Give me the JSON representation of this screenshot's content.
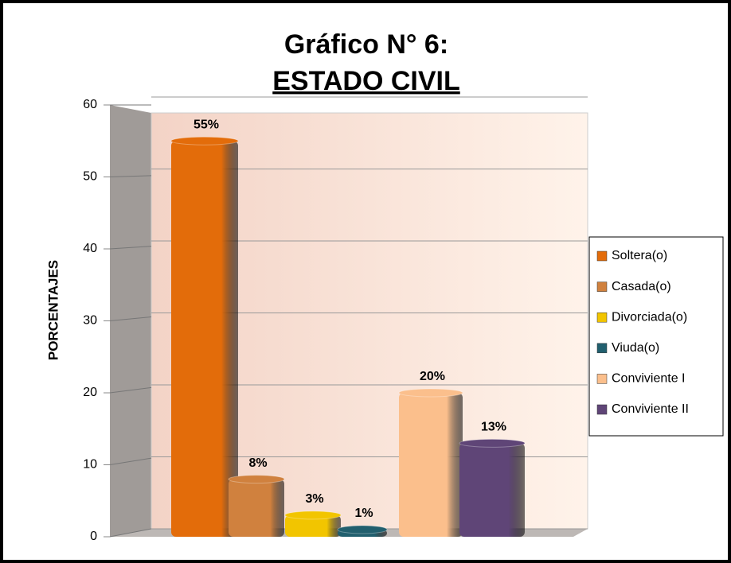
{
  "chart_data": {
    "type": "bar",
    "title": "Gráfico N° 6:",
    "subtitle": "ESTADO CIVIL",
    "y_label": "PORCENTAJES",
    "ylim": [
      0,
      60
    ],
    "yticks": [
      0,
      10,
      20,
      30,
      40,
      50,
      60
    ],
    "grid": true,
    "legend": "right",
    "series": [
      {
        "name": "Soltera(o)",
        "color": "#e36c0a",
        "values": [
          55
        ],
        "value_labels": [
          "55%"
        ]
      },
      {
        "name": "Casada(o)",
        "color": "#d0813e",
        "values": [
          8
        ],
        "value_labels": [
          "8%"
        ]
      },
      {
        "name": "Divorciada(o)",
        "color": "#f2c500",
        "values": [
          3
        ],
        "value_labels": [
          "3%"
        ]
      },
      {
        "name": "Viuda(o)",
        "color": "#215f6e",
        "values": [
          1
        ],
        "value_labels": [
          "1%"
        ]
      },
      {
        "name": "Conviviente I",
        "color": "#fbbf8c",
        "values": [
          20
        ],
        "value_labels": [
          "20%"
        ]
      },
      {
        "name": "Conviviente II",
        "color": "#5f4577",
        "values": [
          13
        ],
        "value_labels": [
          "13%"
        ]
      }
    ]
  }
}
